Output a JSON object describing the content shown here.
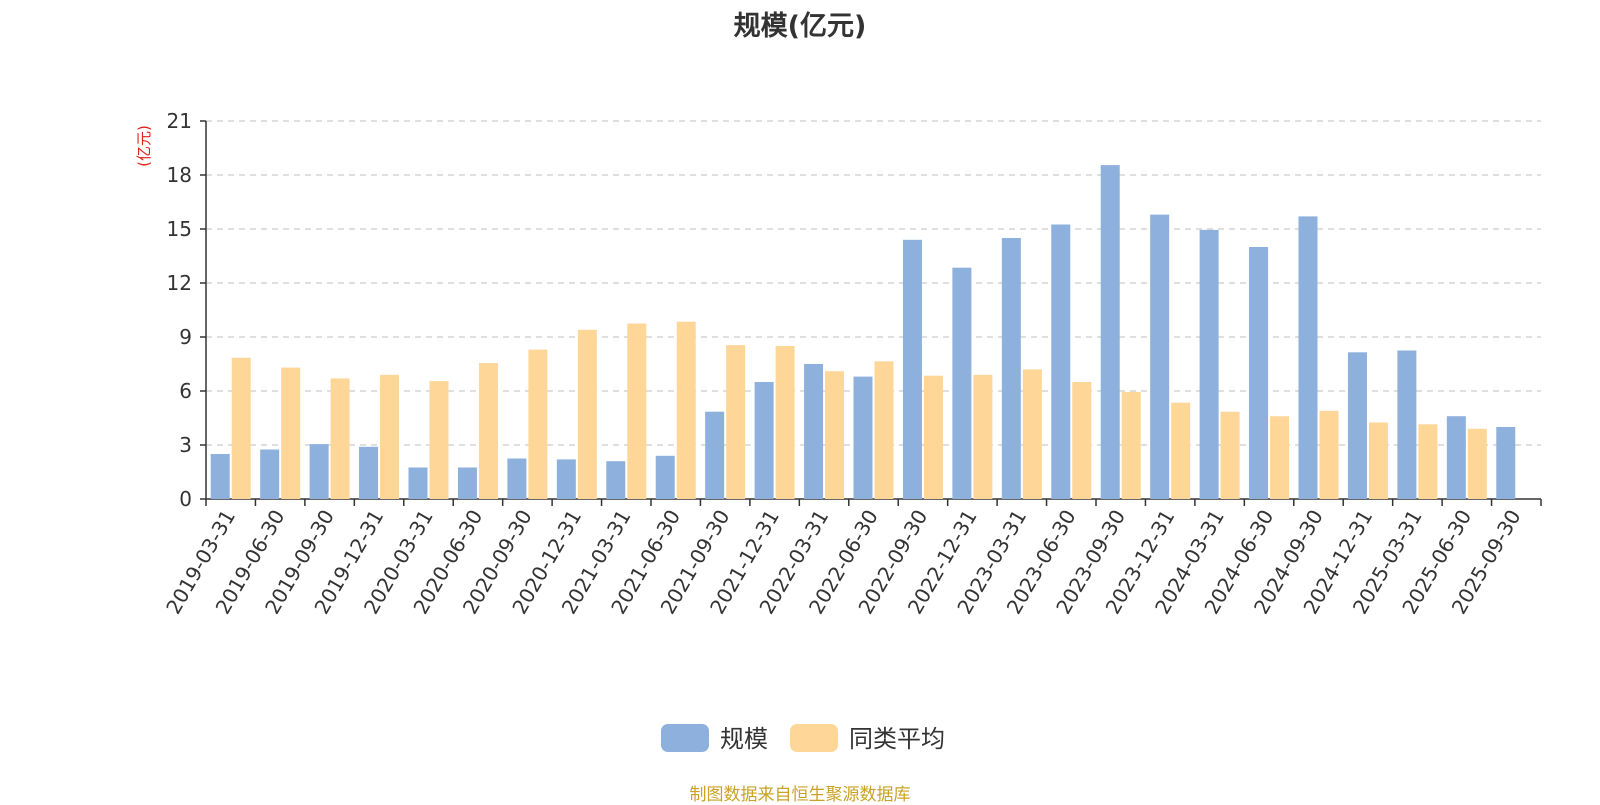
{
  "chart_data": {
    "type": "bar",
    "title": "规模(亿元)",
    "ylabel": "(亿元)",
    "xlabel": "",
    "ylim": [
      0,
      21
    ],
    "yticks": [
      0,
      3,
      6,
      9,
      12,
      15,
      18,
      21
    ],
    "grid": true,
    "legend_position": "bottom",
    "categories": [
      "2019-03-31",
      "2019-06-30",
      "2019-09-30",
      "2019-12-31",
      "2020-03-31",
      "2020-06-30",
      "2020-09-30",
      "2020-12-31",
      "2021-03-31",
      "2021-06-30",
      "2021-09-30",
      "2021-12-31",
      "2022-03-31",
      "2022-06-30",
      "2022-09-30",
      "2022-12-31",
      "2023-03-31",
      "2023-06-30",
      "2023-09-30",
      "2023-12-31",
      "2024-03-31",
      "2024-06-30",
      "2024-09-30",
      "2024-12-31",
      "2025-03-31",
      "2025-06-30",
      "2025-09-30"
    ],
    "series": [
      {
        "name": "规模",
        "color": "#8eb0dd",
        "values": [
          2.5,
          2.75,
          3.05,
          2.9,
          1.75,
          1.75,
          2.25,
          2.2,
          2.1,
          2.4,
          4.85,
          6.5,
          7.5,
          6.8,
          14.4,
          12.85,
          14.5,
          15.25,
          18.55,
          15.8,
          14.95,
          14.0,
          15.7,
          8.15,
          8.25,
          4.6,
          4.0
        ]
      },
      {
        "name": "同类平均",
        "color": "#fed698",
        "values": [
          7.85,
          7.3,
          6.7,
          6.9,
          6.55,
          7.55,
          8.3,
          9.4,
          9.75,
          9.85,
          8.55,
          8.5,
          7.1,
          7.65,
          6.85,
          6.9,
          7.2,
          6.5,
          5.95,
          5.35,
          4.85,
          4.6,
          4.9,
          4.25,
          4.15,
          3.9,
          null
        ]
      }
    ]
  },
  "footer": {
    "source": "制图数据来自恒生聚源数据库"
  }
}
